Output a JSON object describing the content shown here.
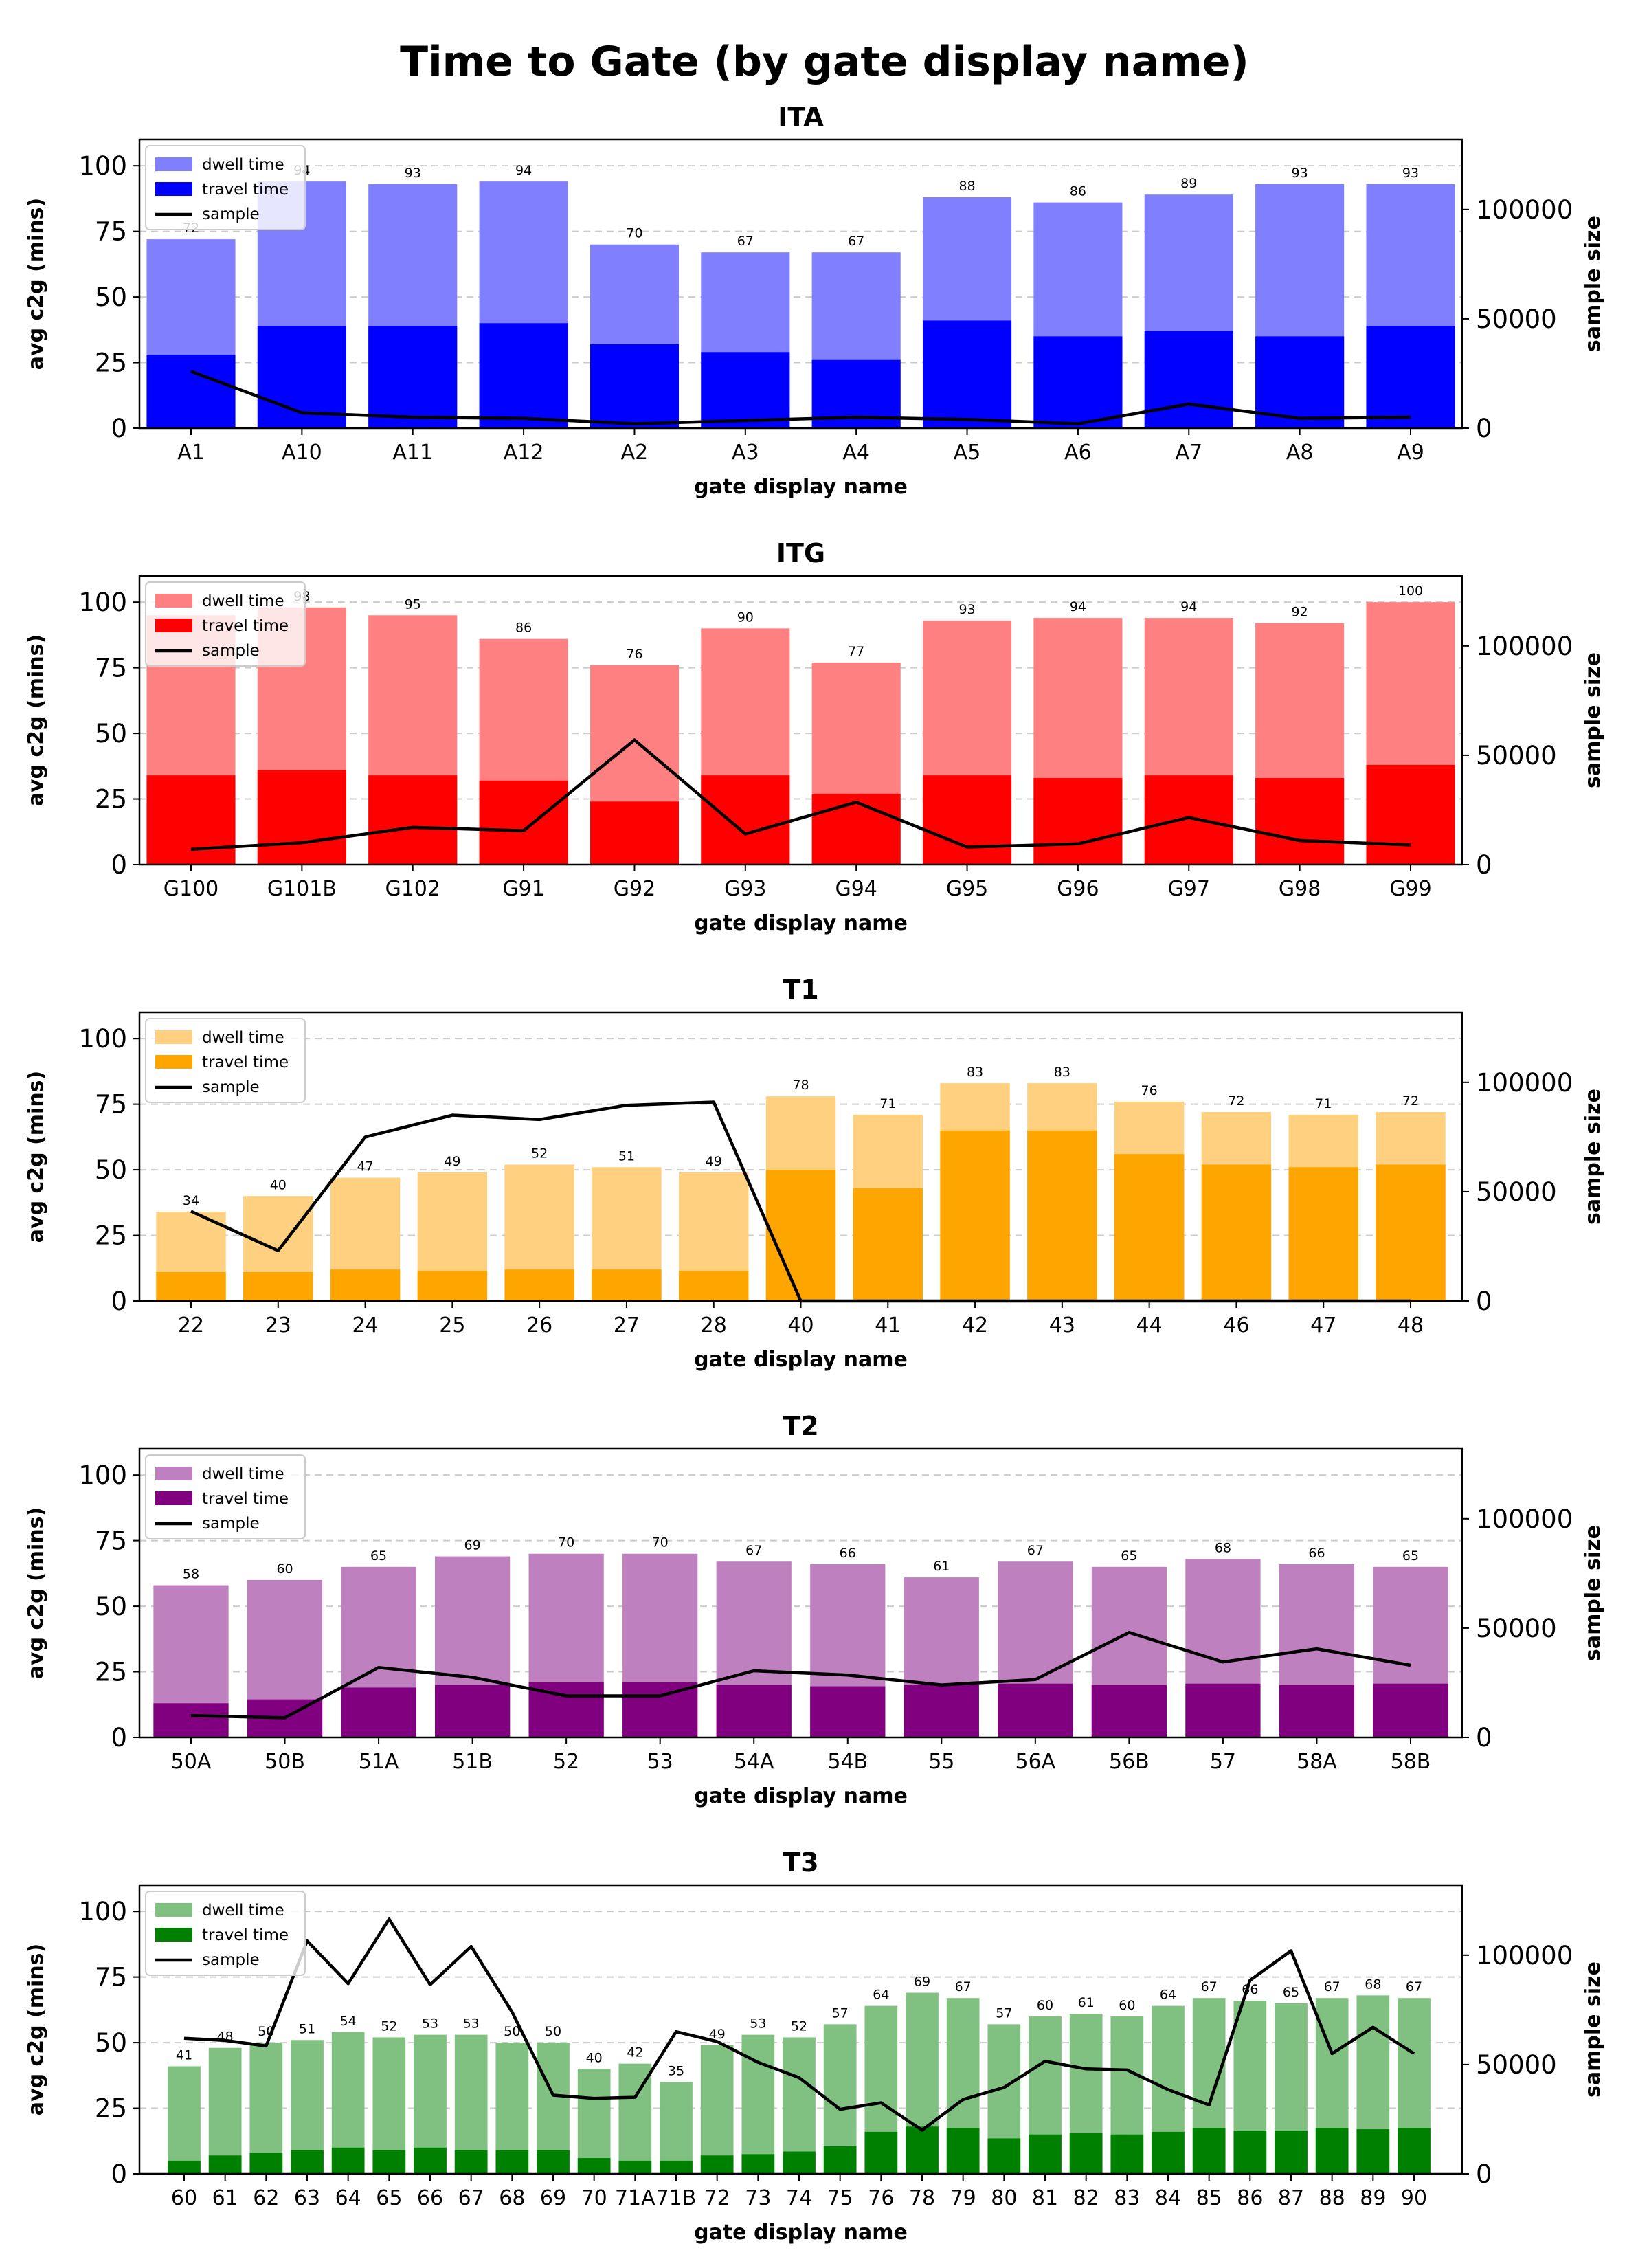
{
  "figure_title": "Time to Gate (by gate display name)",
  "chart_data": [
    {
      "type": "bar",
      "title": "ITA",
      "xlabel": "gate display name",
      "ylabel": "avg c2g (mins)",
      "y2label": "sample size",
      "ylim": [
        0,
        110
      ],
      "y2lim": [
        0,
        132000
      ],
      "yticks": [
        "0",
        "25",
        "50",
        "75",
        "100"
      ],
      "y2ticks": [
        "0",
        "50000",
        "100000"
      ],
      "grid": "horizontal dashed",
      "legend_position": "top-left",
      "colors": {
        "dwell": "#8080ff",
        "travel": "#0000ff",
        "sample": "#000000"
      },
      "legend": [
        "dwell time",
        "travel time",
        "sample"
      ],
      "categories": [
        "A1",
        "A10",
        "A11",
        "A12",
        "A2",
        "A3",
        "A4",
        "A5",
        "A6",
        "A7",
        "A8",
        "A9"
      ],
      "series": [
        {
          "name": "dwell time",
          "values": [
            72,
            94,
            93,
            94,
            70,
            67,
            67,
            88,
            86,
            89,
            93,
            93
          ]
        },
        {
          "name": "travel time",
          "values": [
            28,
            39,
            39,
            40,
            32,
            29,
            26,
            41,
            35,
            37,
            35,
            39
          ]
        },
        {
          "name": "sample",
          "values": [
            26000,
            7000,
            5000,
            4500,
            2000,
            3500,
            5000,
            4000,
            2000,
            11000,
            4500,
            5000
          ]
        }
      ],
      "data_labels": [
        "72",
        "94",
        "93",
        "94",
        "70",
        "67",
        "67",
        "88",
        "86",
        "89",
        "93",
        "93"
      ]
    },
    {
      "type": "bar",
      "title": "ITG",
      "xlabel": "gate display name",
      "ylabel": "avg c2g (mins)",
      "y2label": "sample size",
      "ylim": [
        0,
        110
      ],
      "y2lim": [
        0,
        132000
      ],
      "yticks": [
        "0",
        "25",
        "50",
        "75",
        "100"
      ],
      "y2ticks": [
        "0",
        "50000",
        "100000"
      ],
      "grid": "horizontal dashed",
      "legend_position": "top-left",
      "colors": {
        "dwell": "#ff8080",
        "travel": "#ff0000",
        "sample": "#000000"
      },
      "legend": [
        "dwell time",
        "travel time",
        "sample"
      ],
      "categories": [
        "G100",
        "G101B",
        "G102",
        "G91",
        "G92",
        "G93",
        "G94",
        "G95",
        "G96",
        "G97",
        "G98",
        "G99"
      ],
      "series": [
        {
          "name": "dwell time",
          "values": [
            95,
            98,
            95,
            86,
            76,
            90,
            77,
            93,
            94,
            94,
            92,
            100
          ]
        },
        {
          "name": "travel time",
          "values": [
            34,
            36,
            34,
            32,
            24,
            34,
            27,
            34,
            33,
            34,
            33,
            38
          ]
        },
        {
          "name": "sample",
          "values": [
            7000,
            10000,
            17000,
            15500,
            57000,
            14000,
            28500,
            8000,
            9500,
            21500,
            11000,
            9000
          ]
        }
      ],
      "data_labels": [
        "",
        "98",
        "95",
        "86",
        "76",
        "90",
        "77",
        "93",
        "94",
        "94",
        "92",
        "100"
      ]
    },
    {
      "type": "bar",
      "title": "T1",
      "xlabel": "gate display name",
      "ylabel": "avg c2g (mins)",
      "y2label": "sample size",
      "ylim": [
        0,
        110
      ],
      "y2lim": [
        0,
        132000
      ],
      "yticks": [
        "0",
        "25",
        "50",
        "75",
        "100"
      ],
      "y2ticks": [
        "0",
        "50000",
        "100000"
      ],
      "grid": "horizontal dashed",
      "legend_position": "top-left",
      "colors": {
        "dwell": "#ffd080",
        "travel": "#ffa500",
        "sample": "#000000"
      },
      "legend": [
        "dwell time",
        "travel time",
        "sample"
      ],
      "categories": [
        "22",
        "23",
        "24",
        "25",
        "26",
        "27",
        "28",
        "40",
        "41",
        "42",
        "43",
        "44",
        "46",
        "47",
        "48"
      ],
      "series": [
        {
          "name": "dwell time",
          "values": [
            34,
            40,
            47,
            49,
            52,
            51,
            49,
            78,
            71,
            83,
            83,
            76,
            72,
            71,
            72
          ]
        },
        {
          "name": "travel time",
          "values": [
            11,
            11,
            12,
            11.5,
            12,
            12,
            11.5,
            50,
            43,
            65,
            65,
            56,
            52,
            51,
            52
          ]
        },
        {
          "name": "sample",
          "values": [
            41000,
            23000,
            75000,
            85000,
            83000,
            89500,
            91000,
            0,
            0,
            0,
            0,
            0,
            0,
            0,
            0
          ]
        }
      ],
      "data_labels": [
        "34",
        "40",
        "47",
        "49",
        "52",
        "51",
        "49",
        "78",
        "71",
        "83",
        "83",
        "76",
        "72",
        "71",
        "72"
      ]
    },
    {
      "type": "bar",
      "title": "T2",
      "xlabel": "gate display name",
      "ylabel": "avg c2g (mins)",
      "y2label": "sample size",
      "ylim": [
        0,
        110
      ],
      "y2lim": [
        0,
        132000
      ],
      "yticks": [
        "0",
        "25",
        "50",
        "75",
        "100"
      ],
      "y2ticks": [
        "0",
        "50000",
        "100000"
      ],
      "grid": "horizontal dashed",
      "legend_position": "top-left",
      "colors": {
        "dwell": "#bf80bf",
        "travel": "#800080",
        "sample": "#000000"
      },
      "legend": [
        "dwell time",
        "travel time",
        "sample"
      ],
      "categories": [
        "50A",
        "50B",
        "51A",
        "51B",
        "52",
        "53",
        "54A",
        "54B",
        "55",
        "56A",
        "56B",
        "57",
        "58A",
        "58B"
      ],
      "series": [
        {
          "name": "dwell time",
          "values": [
            58,
            60,
            65,
            69,
            70,
            70,
            67,
            66,
            61,
            67,
            65,
            68,
            66,
            65
          ]
        },
        {
          "name": "travel time",
          "values": [
            13,
            14.5,
            19,
            20,
            21,
            21,
            20,
            19.5,
            20,
            20.5,
            20,
            20.5,
            20,
            20.5
          ]
        },
        {
          "name": "sample",
          "values": [
            10000,
            9000,
            32000,
            27500,
            19000,
            19000,
            30500,
            28500,
            24000,
            26500,
            48000,
            34500,
            40500,
            33000
          ]
        }
      ],
      "data_labels": [
        "58",
        "60",
        "65",
        "69",
        "70",
        "70",
        "67",
        "66",
        "61",
        "67",
        "65",
        "68",
        "66",
        "65"
      ]
    },
    {
      "type": "bar",
      "title": "T3",
      "xlabel": "gate display name",
      "ylabel": "avg c2g (mins)",
      "y2label": "sample size",
      "ylim": [
        0,
        110
      ],
      "y2lim": [
        0,
        132000
      ],
      "yticks": [
        "0",
        "25",
        "50",
        "75",
        "100"
      ],
      "y2ticks": [
        "0",
        "50000",
        "100000"
      ],
      "grid": "horizontal dashed",
      "legend_position": "top-left",
      "colors": {
        "dwell": "#80c080",
        "travel": "#008000",
        "sample": "#000000"
      },
      "legend": [
        "dwell time",
        "travel time",
        "sample"
      ],
      "categories": [
        "60",
        "61",
        "62",
        "63",
        "64",
        "65",
        "66",
        "67",
        "68",
        "69",
        "70",
        "71A",
        "71B",
        "72",
        "73",
        "74",
        "75",
        "76",
        "78",
        "79",
        "80",
        "81",
        "82",
        "83",
        "84",
        "85",
        "86",
        "87",
        "88",
        "89",
        "90"
      ],
      "series": [
        {
          "name": "dwell time",
          "values": [
            41,
            48,
            50,
            51,
            54,
            52,
            53,
            53,
            50,
            50,
            40,
            42,
            35,
            49,
            53,
            52,
            57,
            64,
            69,
            67,
            57,
            60,
            61,
            60,
            64,
            67,
            66,
            65,
            67,
            68,
            67
          ]
        },
        {
          "name": "travel time",
          "values": [
            5,
            7,
            8,
            9,
            10,
            9,
            10,
            9,
            9,
            9,
            6,
            5,
            5,
            7,
            7.5,
            8.5,
            10.5,
            16,
            18,
            17.5,
            13.5,
            15,
            15.5,
            15,
            16,
            17.5,
            16.5,
            16.5,
            17.5,
            17,
            17.5
          ]
        },
        {
          "name": "sample",
          "values": [
            62000,
            61000,
            58500,
            106500,
            87000,
            116500,
            86500,
            104000,
            74000,
            36000,
            34500,
            35000,
            65000,
            60500,
            51000,
            44000,
            29500,
            32500,
            20000,
            34000,
            39500,
            51500,
            48000,
            47500,
            38500,
            31500,
            88500,
            102000,
            55000,
            67000,
            55000
          ]
        }
      ],
      "data_labels": [
        "41",
        "48",
        "50",
        "51",
        "54",
        "52",
        "53",
        "53",
        "50",
        "50",
        "40",
        "42",
        "35",
        "49",
        "53",
        "52",
        "57",
        "64",
        "69",
        "67",
        "57",
        "60",
        "61",
        "60",
        "64",
        "67",
        "66",
        "65",
        "67",
        "68",
        "67"
      ]
    }
  ]
}
